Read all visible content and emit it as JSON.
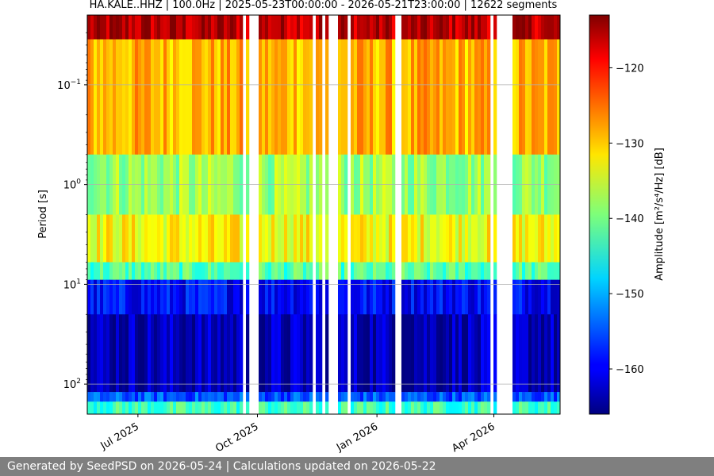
{
  "chart_data": {
    "type": "heatmap",
    "title": "HA.KALE..HHZ | 100.0Hz | 2025-05-23T00:00:00 - 2026-05-21T23:00:00 | 12622 segments",
    "xlabel": "",
    "ylabel": "Period [s]",
    "x_range": [
      "2025-05-23",
      "2026-05-21"
    ],
    "x_ticks": [
      {
        "date": "2025-07-01",
        "label": "Jul 2025"
      },
      {
        "date": "2025-10-01",
        "label": "Oct 2025"
      },
      {
        "date": "2026-01-01",
        "label": "Jan 2026"
      },
      {
        "date": "2026-04-01",
        "label": "Apr 2026"
      }
    ],
    "y_scale": "log",
    "y_inverted": true,
    "y_range": [
      0.02,
      200
    ],
    "y_ticks": [
      {
        "value": 0.1,
        "base": "10",
        "exp": "−1"
      },
      {
        "value": 1,
        "base": "10",
        "exp": "0"
      },
      {
        "value": 10,
        "base": "10",
        "exp": "1"
      },
      {
        "value": 100,
        "base": "10",
        "exp": "2"
      }
    ],
    "grid": true,
    "colormap": "jet",
    "colorbar": {
      "label": "Amplitude [m²/s⁴/Hz] [dB]",
      "range": [
        -166,
        -113
      ],
      "ticks": [
        -120,
        -130,
        -140,
        -150,
        -160
      ]
    },
    "period_bands": [
      {
        "period_from": 0.02,
        "period_to": 0.035,
        "amplitude_db": -116
      },
      {
        "period_from": 0.035,
        "period_to": 0.5,
        "amplitude_db": -129
      },
      {
        "period_from": 0.5,
        "period_to": 2,
        "amplitude_db": -138
      },
      {
        "period_from": 2,
        "period_to": 6,
        "amplitude_db": -133
      },
      {
        "period_from": 6,
        "period_to": 9,
        "amplitude_db": -142
      },
      {
        "period_from": 9,
        "period_to": 20,
        "amplitude_db": -159
      },
      {
        "period_from": 20,
        "period_to": 120,
        "amplitude_db": -163
      },
      {
        "period_from": 120,
        "period_to": 150,
        "amplitude_db": -155
      },
      {
        "period_from": 150,
        "period_to": 200,
        "amplitude_db": -143
      }
    ],
    "data_gaps": [
      [
        "2025-09-20",
        "2025-09-22"
      ],
      [
        "2025-09-24",
        "2025-10-01"
      ],
      [
        "2025-11-12",
        "2025-11-16"
      ],
      [
        "2025-11-20",
        "2025-11-22"
      ],
      [
        "2025-11-25",
        "2025-12-02"
      ],
      [
        "2025-12-09",
        "2025-12-12"
      ],
      [
        "2026-01-04",
        "2026-01-06"
      ],
      [
        "2026-01-16",
        "2026-01-19"
      ],
      [
        "2026-03-29",
        "2026-04-01"
      ],
      [
        "2026-04-02",
        "2026-04-15"
      ]
    ]
  },
  "footer_text": "Generated by SeedPSD on 2026-05-24 | Calculations updated on 2026-05-22",
  "colors": {
    "grid": "#b0b0b0",
    "footer_bg": "#7f7f7f",
    "footer_text": "#ffffff"
  }
}
